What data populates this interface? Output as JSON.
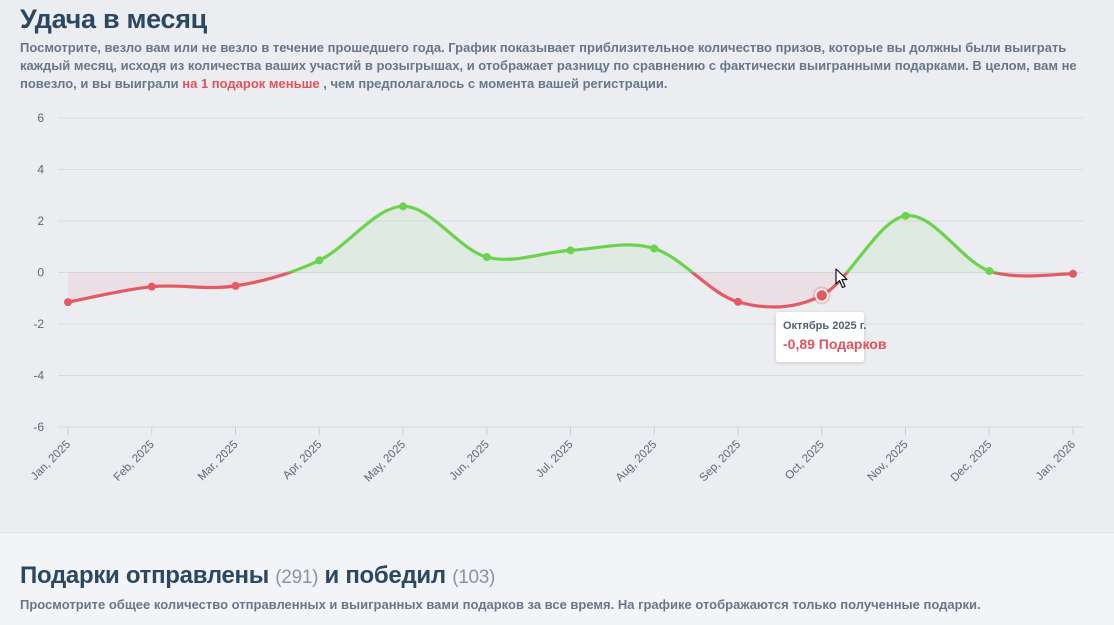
{
  "header": {
    "title": "Удача в месяц",
    "description_part1": "Посмотрите, везло вам или не везло в течение прошедшего года. График показывает приблизительное количество призов, которые вы должны были выиграть каждый месяц, исходя из количества ваших участий в розыгрышах, и отображает разницу по сравнению с фактически выигранными подарками. В целом, вам не повезло, и вы выиграли",
    "description_highlight": "на 1 подарок меньше",
    "description_part2": ", чем предполагалось с момента вашей регистрации."
  },
  "chart_data": {
    "type": "area",
    "x": [
      "Jan, 2025",
      "Feb, 2025",
      "Mar, 2025",
      "Apr, 2025",
      "May, 2025",
      "Jun, 2025",
      "Jul, 2025",
      "Aug, 2025",
      "Sep, 2025",
      "Oct, 2025",
      "Nov, 2025",
      "Dec, 2025",
      "Jan, 2026"
    ],
    "values": [
      -1.15,
      -0.55,
      -0.52,
      0.47,
      2.57,
      0.6,
      0.86,
      0.93,
      -1.14,
      -0.89,
      2.2,
      0.06,
      -0.05
    ],
    "yticks": [
      "6",
      "4",
      "2",
      "0",
      "-2",
      "-4",
      "-6"
    ],
    "ylim": [
      -6,
      6
    ],
    "grid": true,
    "positive_color": "#6dd34e",
    "negative_color": "#e35a62",
    "tooltip": {
      "date": "Октябрь 2025 г.",
      "value": "-0,89 Подарков"
    }
  },
  "section2": {
    "title": "Подарки отправлены",
    "sent_count": "(291)",
    "connector": "и победил",
    "won_count": "(103)",
    "description": "Просмотрите общее количество отправленных и выигранных вами подарков за все время. На графике отображаются только полученные подарки."
  }
}
